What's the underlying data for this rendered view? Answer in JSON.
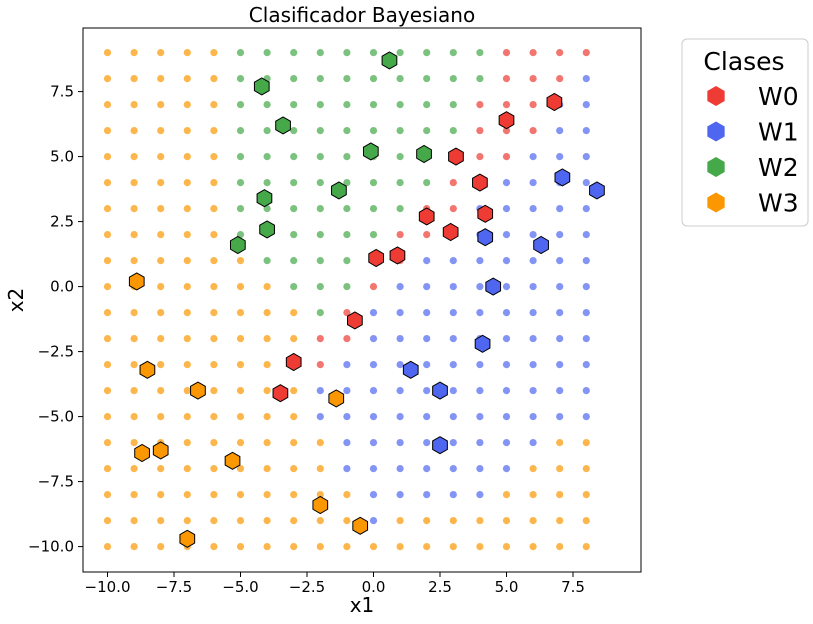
{
  "chart_data": {
    "type": "scatter",
    "title": "Clasificador Bayesiano",
    "xlabel": "x1",
    "ylabel": "x2",
    "xlim": [
      -11,
      10
    ],
    "ylim": [
      -11,
      10
    ],
    "x_ticks": [
      -10.0,
      -7.5,
      -5.0,
      -2.5,
      0.0,
      2.5,
      5.0,
      7.5
    ],
    "y_ticks": [
      -10.0,
      -7.5,
      -5.0,
      -2.5,
      0.0,
      2.5,
      5.0,
      7.5
    ],
    "x_tick_labels": [
      "−10.0",
      "−7.5",
      "−5.0",
      "−2.5",
      "0.0",
      "2.5",
      "5.0",
      "7.5"
    ],
    "y_tick_labels": [
      "−10.0",
      "−7.5",
      "−5.0",
      "−2.5",
      "0.0",
      "2.5",
      "5.0",
      "7.5"
    ],
    "grid": false,
    "legend": {
      "title": "Clases",
      "placement": "outside-right",
      "entries": [
        "W0",
        "W1",
        "W2",
        "W3"
      ]
    },
    "class_colors": {
      "W0": "#ee3b33",
      "W1": "#4f66f0",
      "W2": "#45a849",
      "W3": "#fb9700"
    },
    "background_grid": {
      "x_start": -10,
      "x_end": 9,
      "y_start": -10,
      "y_end": 9,
      "step": 1,
      "rows": {
        "9": "3333322222222220000",
        "8": "3333322222222220001",
        "7": "3333322222222200011",
        "6": "3333322222222200011",
        "5": "3333322222222200111",
        "4": "3333322222222001111",
        "3": "3333322222220011111",
        "2": "3333322222200111111",
        "1": "3333332222001111111",
        "0": "3333333222011111111",
        "-1": "3333333320111111111",
        "-2": "3333333300111111111",
        "-3": "3333333301111111111",
        "-4": "3333333311111111111",
        "-5": "3333333311111111111",
        "-6": "3333333331111111133",
        "-7": "3333333331111111333",
        "-8": "3333333333111113333",
        "-9": "3333333333133333333",
        "-10": "3333333333333333333"
      }
    },
    "series": [
      {
        "name": "W0",
        "x": [
          -0.7,
          0.1,
          0.9,
          2.0,
          2.9,
          3.1,
          4.0,
          4.2,
          5.0,
          6.8,
          -3.0,
          -3.5
        ],
        "y": [
          -1.3,
          1.1,
          1.2,
          2.7,
          2.1,
          5.0,
          4.0,
          2.8,
          6.4,
          7.1,
          -2.9,
          -4.1
        ]
      },
      {
        "name": "W1",
        "x": [
          4.5,
          4.2,
          6.3,
          7.1,
          8.4,
          4.1,
          1.4,
          2.5,
          2.5
        ],
        "y": [
          0.0,
          1.9,
          1.6,
          4.2,
          3.7,
          -2.2,
          -3.2,
          -4.0,
          -6.1
        ]
      },
      {
        "name": "W2",
        "x": [
          0.6,
          -4.2,
          -3.4,
          -0.1,
          1.9,
          -1.3,
          -4.1,
          -4.0,
          -5.1
        ],
        "y": [
          8.7,
          7.7,
          6.2,
          5.2,
          5.1,
          3.7,
          3.4,
          2.2,
          1.6
        ]
      },
      {
        "name": "W3",
        "x": [
          -8.9,
          -8.5,
          -6.6,
          -1.4,
          -5.3,
          -8.7,
          -8.0,
          -2.0,
          -0.5,
          -7.0
        ],
        "y": [
          0.2,
          -3.2,
          -4.0,
          -4.3,
          -6.7,
          -6.4,
          -6.3,
          -8.4,
          -9.2,
          -9.7
        ]
      }
    ]
  }
}
